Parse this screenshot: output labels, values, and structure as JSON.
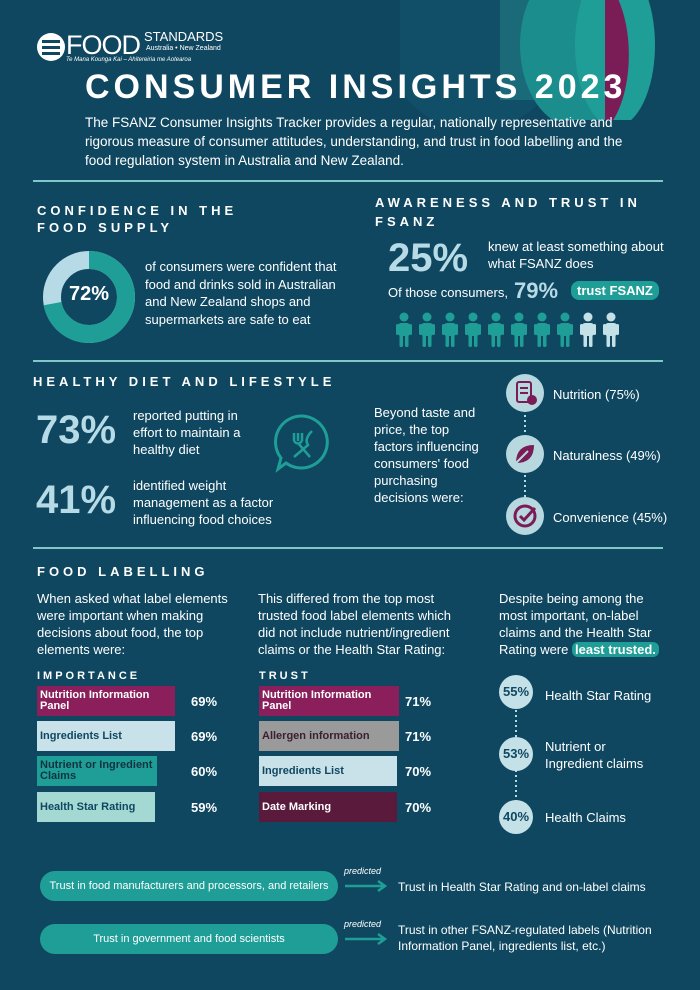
{
  "header": {
    "logo_word": "FOOD",
    "logo_standards": "STANDARDS",
    "logo_region": "Australia • New Zealand",
    "logo_maori": "Te Mana Kounga Kai – Ahitereiria me Aotearoa",
    "title": "CONSUMER INSIGHTS 2023",
    "intro": "The FSANZ Consumer Insights Tracker provides a regular, nationally representative and rigorous measure of consumer attitudes, understanding, and trust in food labelling and the food regulation system in Australia and New Zealand."
  },
  "confidence": {
    "title": "CONFIDENCE IN THE FOOD SUPPLY",
    "percent": "72%",
    "value": 72,
    "text": "of consumers were confident that food and drinks sold in Australian and New Zealand shops and supermarkets are safe to eat"
  },
  "awareness": {
    "title": "AWARENESS AND TRUST IN FSANZ",
    "percent": "25%",
    "text": "knew at least something about what FSANZ does",
    "of_those": "Of those consumers,",
    "trust_percent": "79%",
    "trust_label": "trust FSANZ",
    "trusting_people": 8,
    "total_people": 10
  },
  "healthy": {
    "title": "HEALTHY DIET AND LIFESTYLE",
    "stat1_percent": "73%",
    "stat1_text": "reported putting in effort to maintain a healthy diet",
    "stat2_percent": "41%",
    "stat2_text": "identified weight management as a factor influencing food choices",
    "factors_intro": "Beyond taste and price, the top factors influencing consumers' food purchasing decisions were:",
    "factors": [
      {
        "label": "Nutrition (75%)",
        "icon": "clipboard-apple-icon"
      },
      {
        "label": "Naturalness (49%)",
        "icon": "leaf-icon"
      },
      {
        "label": "Convenience (45%)",
        "icon": "check-circle-icon"
      }
    ]
  },
  "labelling": {
    "title": "FOOD LABELLING",
    "col1_text": "When asked what label elements were important when making decisions about food, the top elements were:",
    "col2_text": "This differed from the top most trusted food label elements which did not include nutrient/ingredient claims or the Health Star Rating:",
    "col3_text_a": "Despite being among the most important, on-label claims and the Health Star Rating were",
    "col3_highlight": "least trusted.",
    "importance_header": "IMPORTANCE",
    "trust_header": "TRUST",
    "importance": [
      {
        "label": "Nutrition Information Panel",
        "pct": "69%",
        "value": 69,
        "color": "#8a1f5c",
        "text_color": "#ffffff"
      },
      {
        "label": "Ingredients List",
        "pct": "69%",
        "value": 69,
        "color": "#c9e1e9",
        "text_color": "#0f4760"
      },
      {
        "label": "Nutrient or Ingredient Claims",
        "pct": "60%",
        "value": 60,
        "color": "#1f9e97",
        "text_color": "#0f3340"
      },
      {
        "label": "Health Star Rating",
        "pct": "59%",
        "value": 59,
        "color": "#a4d9d3",
        "text_color": "#0f4760"
      }
    ],
    "trust": [
      {
        "label": "Nutrition Information Panel",
        "pct": "71%",
        "value": 71,
        "color": "#8a1f5c",
        "text_color": "#ffffff"
      },
      {
        "label": "Allergen information",
        "pct": "71%",
        "value": 71,
        "color": "#9a9a9a",
        "text_color": "#3a2030"
      },
      {
        "label": "Ingredients List",
        "pct": "70%",
        "value": 70,
        "color": "#c9e1e9",
        "text_color": "#0f4760"
      },
      {
        "label": "Date Marking",
        "pct": "70%",
        "value": 70,
        "color": "#5a1a3c",
        "text_color": "#ffffff"
      }
    ],
    "least_trusted": [
      {
        "pct": "55%",
        "label": "Health Star Rating"
      },
      {
        "pct": "53%",
        "label": "Nutrient or Ingredient claims"
      },
      {
        "pct": "40%",
        "label": "Health Claims"
      }
    ]
  },
  "predictions": [
    {
      "from": "Trust in food manufacturers and processors, and retailers",
      "arrow_label": "predicted",
      "to": "Trust in Health Star Rating and on-label claims"
    },
    {
      "from": "Trust in government and food scientists",
      "arrow_label": "predicted",
      "to": "Trust in other FSANZ-regulated labels (Nutrition Information Panel, ingredients list, etc.)"
    }
  ],
  "colors": {
    "background": "#0f4760",
    "teal": "#1f9e97",
    "magenta": "#8a1f5c",
    "light": "#b7dbe6"
  }
}
